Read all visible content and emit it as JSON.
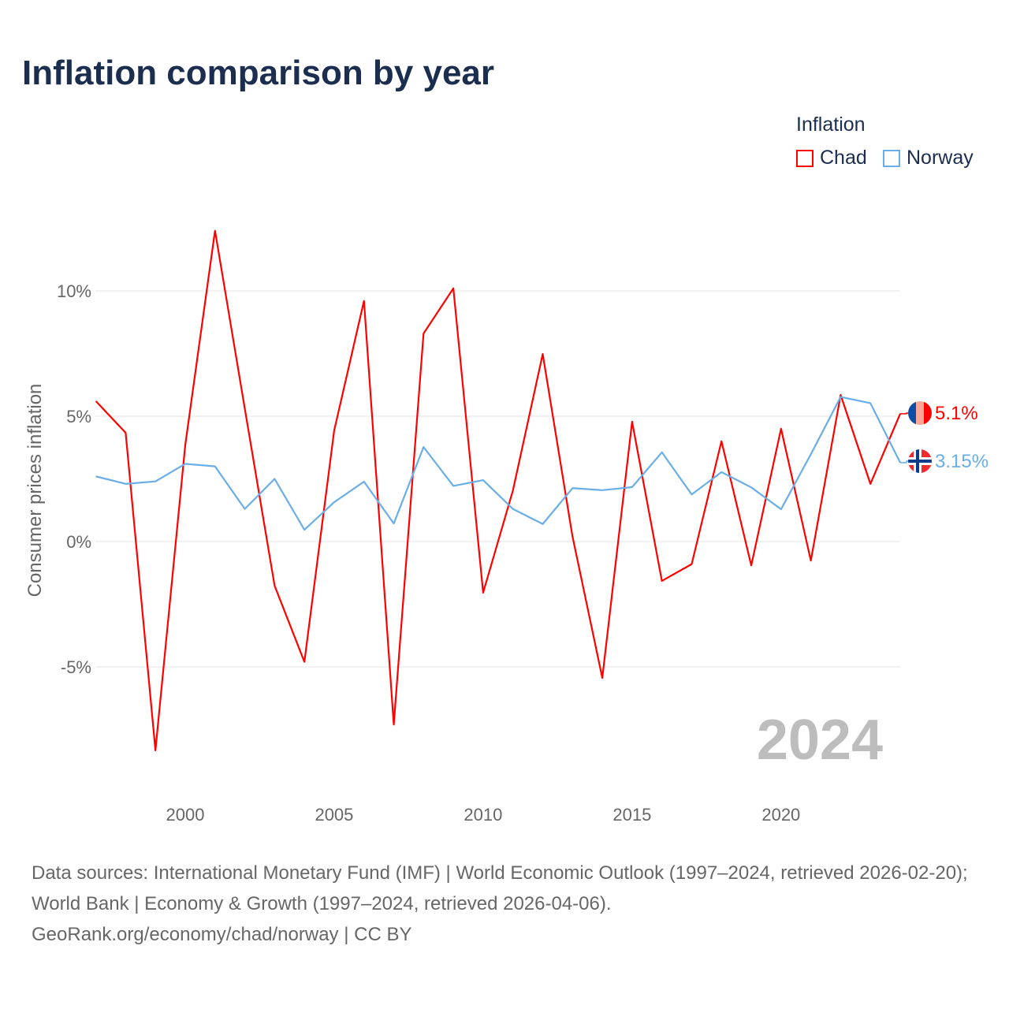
{
  "title": "Inflation comparison by year",
  "legend": {
    "title": "Inflation",
    "items": [
      {
        "name": "Chad",
        "color": "#ff0000"
      },
      {
        "name": "Norway",
        "color": "#6aaee8"
      }
    ]
  },
  "chart_data": {
    "type": "line",
    "title": "Inflation comparison by year",
    "ylabel": "Consumer prices inflation",
    "xlabel": "",
    "x": [
      1997,
      1998,
      1999,
      2000,
      2001,
      2002,
      2003,
      2004,
      2005,
      2006,
      2007,
      2008,
      2009,
      2010,
      2011,
      2012,
      2013,
      2014,
      2015,
      2016,
      2017,
      2018,
      2019,
      2020,
      2021,
      2022,
      2023,
      2024
    ],
    "xticks": [
      2000,
      2005,
      2010,
      2015,
      2020
    ],
    "xtick_labels": [
      "2000",
      "2005",
      "2010",
      "2015",
      "2020"
    ],
    "yticks": [
      -5,
      0,
      5,
      10
    ],
    "ytick_labels": [
      "-5%",
      "0%",
      "5%",
      "10%"
    ],
    "xlim": [
      1997,
      2024
    ],
    "ylim": [
      -9,
      13
    ],
    "grid": true,
    "legend_position": "top-right",
    "series": [
      {
        "name": "Chad",
        "color": "#ff0000",
        "end_label": "5.1%",
        "values": [
          5.6,
          4.34,
          -8.33,
          3.84,
          12.4,
          5.3,
          -1.76,
          -4.8,
          4.43,
          9.6,
          -7.3,
          8.3,
          10.1,
          -2.04,
          2.04,
          7.48,
          0.2,
          -5.44,
          4.78,
          -1.57,
          -0.9,
          4.0,
          -0.95,
          4.5,
          -0.76,
          5.85,
          2.3,
          5.1
        ]
      },
      {
        "name": "Norway",
        "color": "#6aaee8",
        "end_label": "3.15%",
        "values": [
          2.6,
          2.3,
          2.4,
          3.1,
          3.0,
          1.3,
          2.5,
          0.47,
          1.57,
          2.39,
          0.72,
          3.77,
          2.22,
          2.45,
          1.3,
          0.7,
          2.13,
          2.05,
          2.17,
          3.56,
          1.88,
          2.77,
          2.16,
          1.29,
          3.48,
          5.77,
          5.52,
          3.15
        ]
      }
    ],
    "annotation": "2024"
  },
  "footer": {
    "line1": "Data sources: International Monetary Fund (IMF) | World Economic Outlook (1997–2024, retrieved 2026-02-20); World Bank | Economy & Growth (1997–2024, retrieved 2026-04-06).",
    "line2": "GeoRank.org/economy/chad/norway | CC BY"
  }
}
